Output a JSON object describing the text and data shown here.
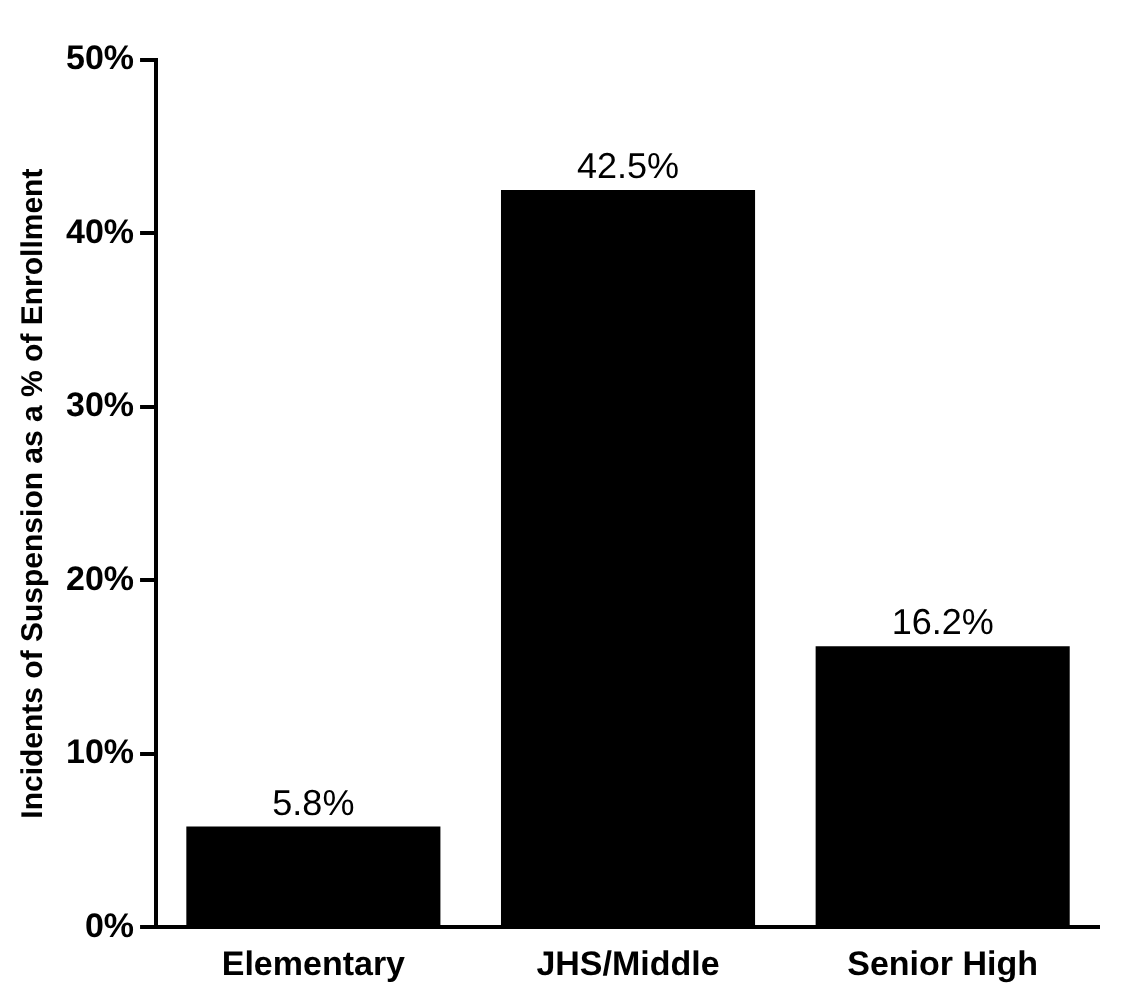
{
  "chart_data": {
    "type": "bar",
    "ylabel": "Incidents of Suspension as a % of Enrollment",
    "categories": [
      "Elementary",
      "JHS/Middle",
      "Senior High"
    ],
    "values": [
      5.8,
      42.5,
      16.2
    ],
    "color": "#000000",
    "ylim": [
      0,
      50
    ],
    "yticks": [
      {
        "value": 0,
        "label": "0%"
      },
      {
        "value": 10,
        "label": "10%"
      },
      {
        "value": 20,
        "label": "20%"
      },
      {
        "value": 30,
        "label": "30%"
      },
      {
        "value": 40,
        "label": "40%"
      },
      {
        "value": 50,
        "label": "50%"
      }
    ],
    "value_labels": [
      "5.8%",
      "42.5%",
      "16.2%"
    ],
    "grid": false
  }
}
